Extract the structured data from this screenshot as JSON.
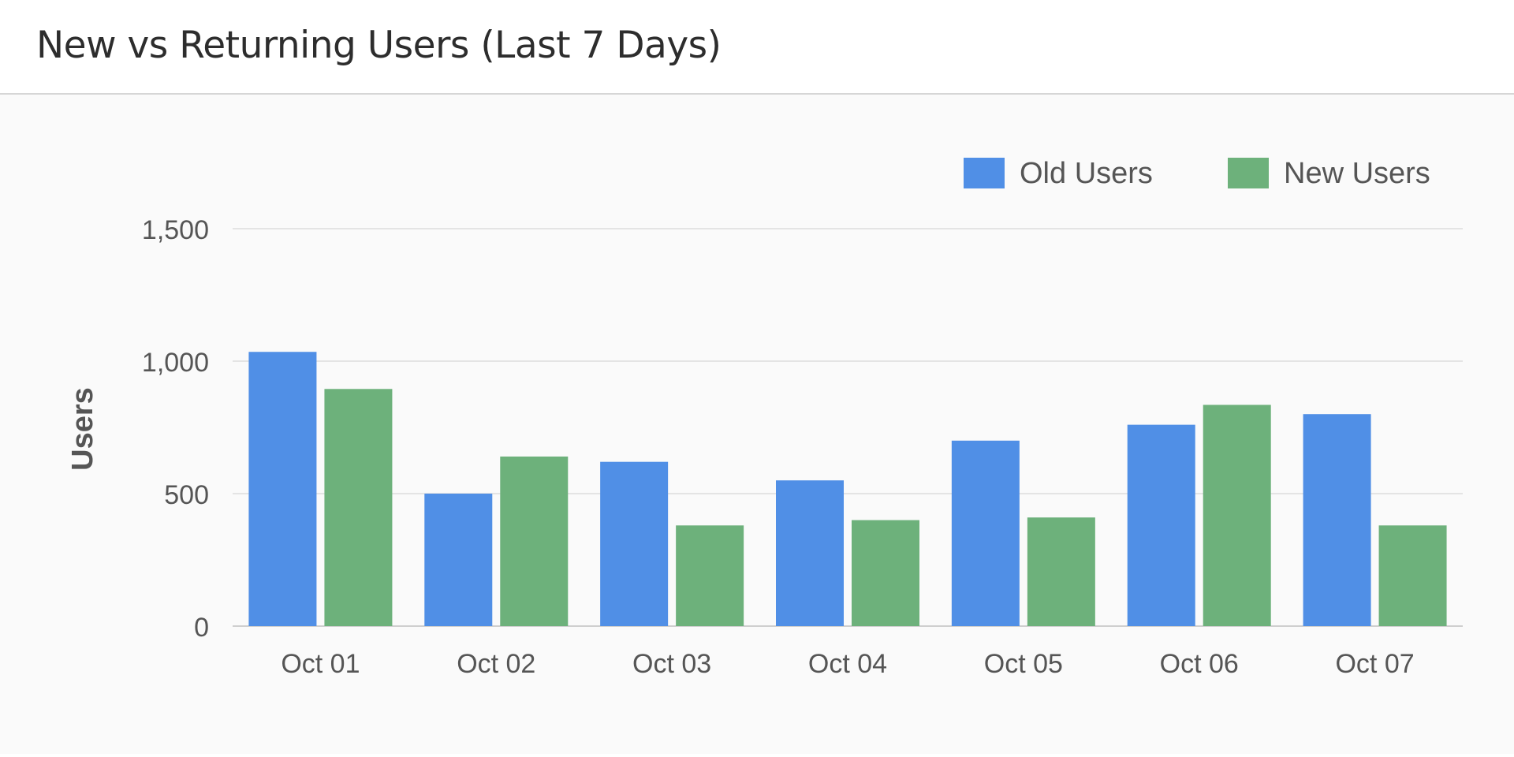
{
  "header": {
    "title": "New vs Returning Users (Last 7 Days)"
  },
  "colors": {
    "old_users": "#508fe6",
    "new_users": "#6db17b",
    "grid": "#e4e4e4",
    "axis_text": "#555555",
    "title_text": "#2d2d2d"
  },
  "chart_data": {
    "type": "bar",
    "title": "New vs Returning Users (Last 7 Days)",
    "xlabel": "",
    "ylabel": "Users",
    "ylim": [
      0,
      1500
    ],
    "yticks": [
      0,
      500,
      1000,
      1500
    ],
    "ytick_labels": [
      "0",
      "500",
      "1,000",
      "1,500"
    ],
    "categories": [
      "Oct 01",
      "Oct 02",
      "Oct 03",
      "Oct 04",
      "Oct 05",
      "Oct 06",
      "Oct 07"
    ],
    "series": [
      {
        "name": "Old Users",
        "values": [
          1035,
          500,
          620,
          550,
          700,
          760,
          800
        ]
      },
      {
        "name": "New Users",
        "values": [
          895,
          640,
          380,
          400,
          410,
          835,
          380
        ]
      }
    ],
    "grid": true,
    "legend_position": "top-right"
  }
}
